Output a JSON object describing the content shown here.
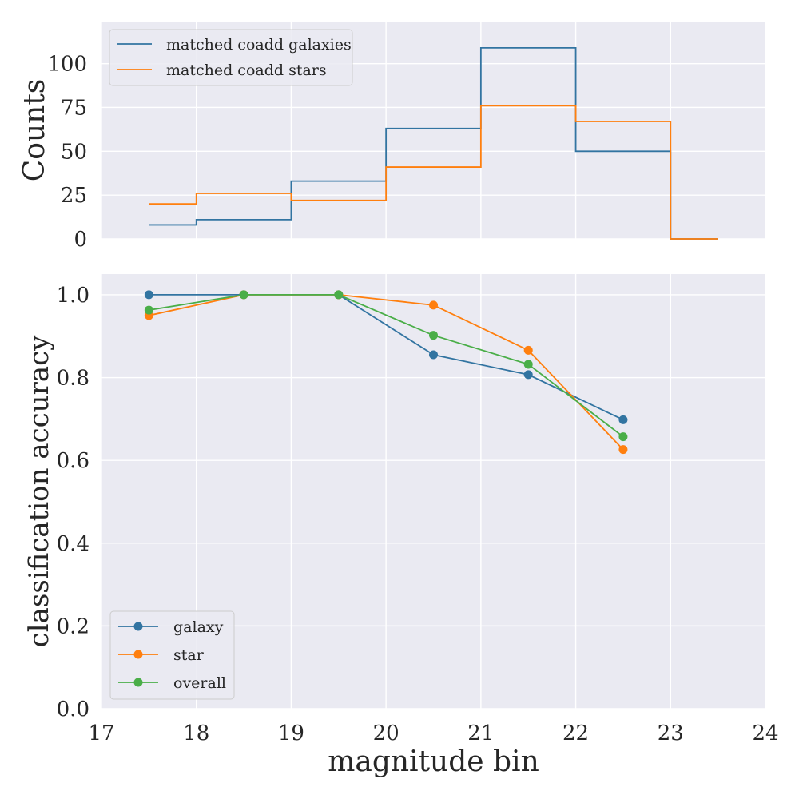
{
  "chart_data": [
    {
      "type": "line",
      "subtype": "step-histogram",
      "title": "",
      "xlabel": "",
      "ylabel": "Counts",
      "xlim": [
        17,
        24
      ],
      "ylim": [
        0,
        124
      ],
      "yticks": [
        0,
        25,
        50,
        75,
        100
      ],
      "grid": true,
      "legend_position": "upper-left",
      "bin_edges": [
        17.5,
        18,
        19,
        20,
        21,
        22,
        23,
        23.5
      ],
      "series": [
        {
          "name": "matched coadd galaxies",
          "color": "#3274a1",
          "values": [
            8,
            11,
            33,
            63,
            109,
            50,
            0
          ]
        },
        {
          "name": "matched coadd stars",
          "color": "#ff7f0e",
          "values": [
            20,
            26,
            22,
            41,
            76,
            67,
            0
          ]
        }
      ]
    },
    {
      "type": "line",
      "title": "",
      "xlabel": "magnitude bin",
      "ylabel": "classification accuracy",
      "xlim": [
        17,
        24
      ],
      "ylim": [
        0.0,
        1.05
      ],
      "xticks": [
        17,
        18,
        19,
        20,
        21,
        22,
        23,
        24
      ],
      "yticks": [
        "0.0",
        "0.2",
        "0.4",
        "0.6",
        "0.8",
        "1.0"
      ],
      "grid": true,
      "legend_position": "lower-left",
      "x": [
        17.5,
        18.5,
        19.5,
        20.5,
        21.5,
        22.5
      ],
      "series": [
        {
          "name": "galaxy",
          "color": "#3274a1",
          "values": [
            1.0,
            1.0,
            1.0,
            0.855,
            0.807,
            0.698
          ]
        },
        {
          "name": "star",
          "color": "#ff7f0e",
          "values": [
            0.95,
            1.0,
            1.0,
            0.975,
            0.866,
            0.626
          ]
        },
        {
          "name": "overall",
          "color": "#4aae48",
          "values": [
            0.963,
            1.0,
            1.0,
            0.902,
            0.832,
            0.657
          ]
        }
      ]
    }
  ]
}
